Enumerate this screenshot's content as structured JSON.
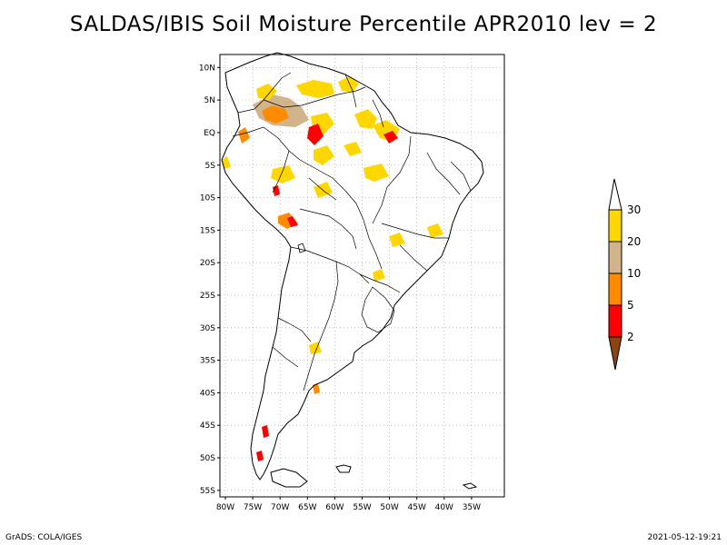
{
  "title": "SALDAS/IBIS Soil Moisture Percentile APR2010 lev = 2",
  "footer": {
    "left": "GrADS: COLA/IGES",
    "right": "2021-05-12-19:21"
  },
  "map": {
    "lon_range": [
      -81,
      -29
    ],
    "lat_range": [
      -56,
      12
    ],
    "grid": true,
    "lat_ticks": [
      {
        "lat": 10,
        "label": "10N"
      },
      {
        "lat": 5,
        "label": "5N"
      },
      {
        "lat": 0,
        "label": "EQ"
      },
      {
        "lat": -5,
        "label": "5S"
      },
      {
        "lat": -10,
        "label": "10S"
      },
      {
        "lat": -15,
        "label": "15S"
      },
      {
        "lat": -20,
        "label": "20S"
      },
      {
        "lat": -25,
        "label": "25S"
      },
      {
        "lat": -30,
        "label": "30S"
      },
      {
        "lat": -35,
        "label": "35S"
      },
      {
        "lat": -40,
        "label": "40S"
      },
      {
        "lat": -45,
        "label": "45S"
      },
      {
        "lat": -50,
        "label": "50S"
      },
      {
        "lat": -55,
        "label": "55S"
      }
    ],
    "lon_ticks": [
      {
        "lon": -80,
        "label": "80W"
      },
      {
        "lon": -75,
        "label": "75W"
      },
      {
        "lon": -70,
        "label": "70W"
      },
      {
        "lon": -65,
        "label": "65W"
      },
      {
        "lon": -60,
        "label": "60W"
      },
      {
        "lon": -55,
        "label": "55W"
      },
      {
        "lon": -50,
        "label": "50W"
      },
      {
        "lon": -45,
        "label": "45W"
      },
      {
        "lon": -40,
        "label": "40W"
      },
      {
        "lon": -35,
        "label": "35W"
      }
    ]
  },
  "colorbar": {
    "levels": [
      "2",
      "5",
      "10",
      "20",
      "30"
    ],
    "colors": {
      "below_2": "#8b4513",
      "2_5": "#ff0000",
      "5_10": "#ff8c00",
      "10_20": "#d2b48c",
      "20_30": "#ffd700",
      "above_30": "#ffffff"
    }
  }
}
